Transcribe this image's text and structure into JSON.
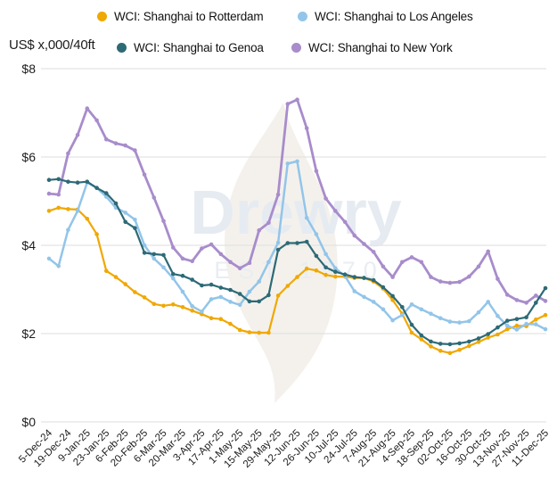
{
  "unit_label": "US$ x,000/40ft",
  "watermark": {
    "brand": "Drewry",
    "tagline": "EST 1970"
  },
  "colors": {
    "background": "#ffffff",
    "gridline": "#e3e3e3",
    "axis_text": "#1c1c1c",
    "legend_text": "#111111",
    "watermark_text": "#e6ebf2",
    "watermark_flame": "#f4f1ec",
    "rotterdam": "#f0a802",
    "los_angeles": "#92c5e9",
    "genoa": "#2d6a76",
    "new_york": "#a88ccb"
  },
  "chart_data": {
    "type": "line",
    "title": "",
    "ylabel": "US$ x,000/40ft",
    "xlabel": "",
    "ylim": [
      0,
      8
    ],
    "ytick_values": [
      0,
      2,
      4,
      6,
      8
    ],
    "ytick_labels": [
      "$0",
      "$2",
      "$4",
      "$6",
      "$8"
    ],
    "grid": "horizontal",
    "legend_position": "top",
    "marker": "circle",
    "x_tick_every": 2,
    "x_tick_labels": [
      "5-Dec-24",
      "19-Dec-24",
      "9-Jan-25",
      "23-Jan-25",
      "6-Feb-25",
      "20-Feb-25",
      "6-Mar-25",
      "20-Mar-25",
      "3-Apr-25",
      "17-Apr-25",
      "1-May-25",
      "15-May-25",
      "29-May-25",
      "12-Jun-25",
      "26-Jun-25",
      "10-Jul-25",
      "24-Jul-25",
      "7-Aug-25",
      "21-Aug-25",
      "4-Sep-25",
      "18-Sep-25",
      "02-Oct-25",
      "16-Oct-25",
      "30-Oct-25",
      "13-Nov-25",
      "27-Nov-25",
      "11-Dec-25"
    ],
    "series": [
      {
        "name": "WCI: Shanghai to Rotterdam",
        "color": "#f0a802",
        "values": [
          4.78,
          4.85,
          4.82,
          4.81,
          4.6,
          4.25,
          3.42,
          3.28,
          3.12,
          2.94,
          2.82,
          2.67,
          2.63,
          2.66,
          2.6,
          2.52,
          2.44,
          2.35,
          2.33,
          2.22,
          2.08,
          2.03,
          2.02,
          2.02,
          2.86,
          3.08,
          3.28,
          3.47,
          3.43,
          3.33,
          3.29,
          3.29,
          3.26,
          3.26,
          3.18,
          3.02,
          2.76,
          2.45,
          2.02,
          1.87,
          1.71,
          1.61,
          1.56,
          1.63,
          1.72,
          1.81,
          1.91,
          1.98,
          2.1,
          2.18,
          2.17,
          2.32,
          2.42
        ]
      },
      {
        "name": "WCI: Shanghai to Los Angeles",
        "color": "#92c5e9",
        "values": [
          3.7,
          3.53,
          4.35,
          4.78,
          5.42,
          5.3,
          5.1,
          4.85,
          4.74,
          4.58,
          4.0,
          3.7,
          3.5,
          3.25,
          2.95,
          2.62,
          2.5,
          2.78,
          2.83,
          2.72,
          2.65,
          2.95,
          3.18,
          3.62,
          4.06,
          5.85,
          5.9,
          4.62,
          4.25,
          3.8,
          3.48,
          3.3,
          2.96,
          2.83,
          2.72,
          2.55,
          2.3,
          2.42,
          2.66,
          2.55,
          2.45,
          2.35,
          2.27,
          2.25,
          2.28,
          2.48,
          2.72,
          2.4,
          2.18,
          2.09,
          2.22,
          2.21,
          2.1
        ]
      },
      {
        "name": "WCI: Shanghai to Genoa",
        "color": "#2d6a76",
        "values": [
          5.48,
          5.5,
          5.44,
          5.42,
          5.44,
          5.3,
          5.18,
          4.95,
          4.53,
          4.39,
          3.83,
          3.8,
          3.78,
          3.35,
          3.31,
          3.22,
          3.09,
          3.11,
          3.04,
          2.99,
          2.9,
          2.73,
          2.73,
          2.87,
          3.9,
          4.05,
          4.05,
          4.08,
          3.76,
          3.5,
          3.4,
          3.34,
          3.28,
          3.26,
          3.21,
          3.05,
          2.85,
          2.6,
          2.2,
          1.96,
          1.82,
          1.77,
          1.76,
          1.78,
          1.82,
          1.89,
          1.99,
          2.14,
          2.29,
          2.33,
          2.37,
          2.7,
          3.03
        ]
      },
      {
        "name": "WCI: Shanghai to New York",
        "color": "#a88ccb",
        "values": [
          5.17,
          5.15,
          6.08,
          6.5,
          7.1,
          6.83,
          6.4,
          6.31,
          6.26,
          6.15,
          5.6,
          5.08,
          4.55,
          3.95,
          3.7,
          3.64,
          3.93,
          4.02,
          3.8,
          3.62,
          3.48,
          3.6,
          4.34,
          4.51,
          5.15,
          7.2,
          7.3,
          6.65,
          5.68,
          5.06,
          4.78,
          4.53,
          4.22,
          4.03,
          3.85,
          3.52,
          3.28,
          3.62,
          3.73,
          3.62,
          3.28,
          3.18,
          3.15,
          3.17,
          3.29,
          3.52,
          3.86,
          3.24,
          2.88,
          2.76,
          2.7,
          2.86,
          2.74
        ]
      }
    ]
  }
}
